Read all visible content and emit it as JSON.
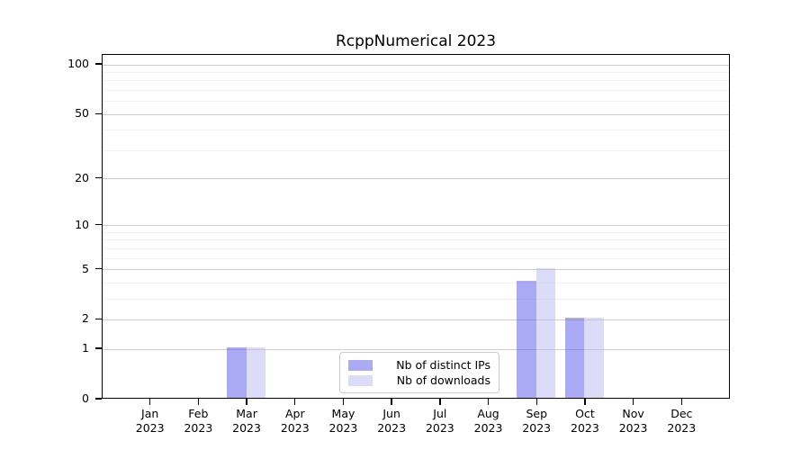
{
  "chart_data": {
    "type": "bar",
    "title": "RcppNumerical 2023",
    "months": [
      "Jan",
      "Feb",
      "Mar",
      "Apr",
      "May",
      "Jun",
      "Jul",
      "Aug",
      "Sep",
      "Oct",
      "Nov",
      "Dec"
    ],
    "year_label": "2023",
    "series": [
      {
        "name": "Nb of distinct IPs",
        "color": "rgba(85,85,235,0.5)",
        "solid_color": "#aaaaf5",
        "values": [
          0,
          0,
          1,
          0,
          0,
          0,
          0,
          0,
          4,
          2,
          0,
          0
        ]
      },
      {
        "name": "Nb of downloads",
        "color": "rgba(185,185,241,0.5)",
        "solid_color": "#dcdcf8",
        "values": [
          0,
          0,
          1,
          0,
          0,
          0,
          0,
          0,
          5,
          2,
          0,
          0
        ]
      }
    ],
    "y_axis": {
      "scale": "log1p",
      "ticks_major": [
        0,
        1,
        2,
        5,
        10,
        20,
        50,
        100
      ],
      "ticks_minor": [
        3,
        4,
        6,
        7,
        8,
        9,
        30,
        40,
        60,
        70,
        80,
        90
      ],
      "ylim": [
        0,
        115
      ]
    },
    "grid": {
      "major_color": "#cdcdcd",
      "minor_color": "#f0f0f0",
      "on": true
    },
    "legend": {
      "position": "lower center inside"
    }
  }
}
